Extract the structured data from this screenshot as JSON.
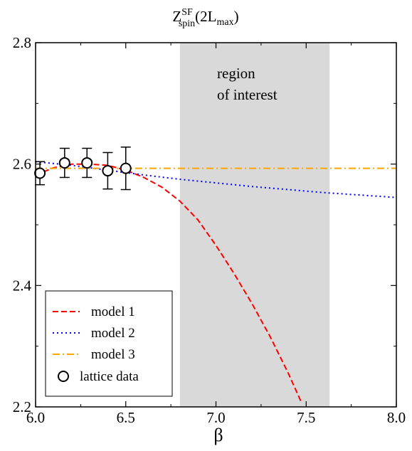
{
  "chart_data": {
    "type": "line",
    "title": {
      "main": "Z",
      "sup": "SF",
      "sub": "spin",
      "arg_open": "(2L",
      "arg_sub": "max",
      "arg_close": ")"
    },
    "xlabel": "β",
    "ylabel": "",
    "xlim": [
      6.0,
      8.0
    ],
    "ylim": [
      2.2,
      2.8
    ],
    "x_ticks": [
      6.0,
      6.5,
      7.0,
      7.5,
      8.0
    ],
    "x_tick_labels": [
      "6.0",
      "6.5",
      "7.0",
      "7.5",
      "8.0"
    ],
    "y_ticks": [
      2.2,
      2.4,
      2.6,
      2.8
    ],
    "y_tick_labels": [
      "2.2",
      "2.4",
      "2.6",
      "2.8"
    ],
    "shaded_region": {
      "x": [
        6.8,
        7.63
      ],
      "label_lines": [
        "region",
        "of interest"
      ],
      "color": "#d9d9d9"
    },
    "series": [
      {
        "name": "model 1",
        "style": "dashed",
        "color": "#ff0000",
        "x": [
          6.0,
          6.1,
          6.2,
          6.3,
          6.4,
          6.5,
          6.6,
          6.7,
          6.8,
          6.9,
          7.0,
          7.1,
          7.2,
          7.3,
          7.4,
          7.47
        ],
        "y": [
          2.582,
          2.594,
          2.6,
          2.6,
          2.598,
          2.59,
          2.578,
          2.562,
          2.539,
          2.508,
          2.466,
          2.42,
          2.37,
          2.316,
          2.256,
          2.21
        ]
      },
      {
        "name": "model 2",
        "style": "dotted",
        "color": "#0000ff",
        "x": [
          6.0,
          6.2,
          6.4,
          6.6,
          6.8,
          7.0,
          7.2,
          7.4,
          7.6,
          7.8,
          8.0
        ],
        "y": [
          2.604,
          2.598,
          2.59,
          2.582,
          2.575,
          2.569,
          2.563,
          2.558,
          2.553,
          2.549,
          2.545
        ]
      },
      {
        "name": "model 3",
        "style": "dashdot",
        "color": "#ffa500",
        "x": [
          6.0,
          8.0
        ],
        "y": [
          2.593,
          2.593
        ]
      },
      {
        "name": "lattice data",
        "style": "points",
        "x": [
          6.024,
          6.161,
          6.285,
          6.4,
          6.5
        ],
        "y": [
          2.585,
          2.602,
          2.602,
          2.589,
          2.593
        ],
        "err": [
          0.019,
          0.024,
          0.024,
          0.03,
          0.035
        ]
      }
    ],
    "grid": false,
    "legend_position": "bottom-left"
  }
}
